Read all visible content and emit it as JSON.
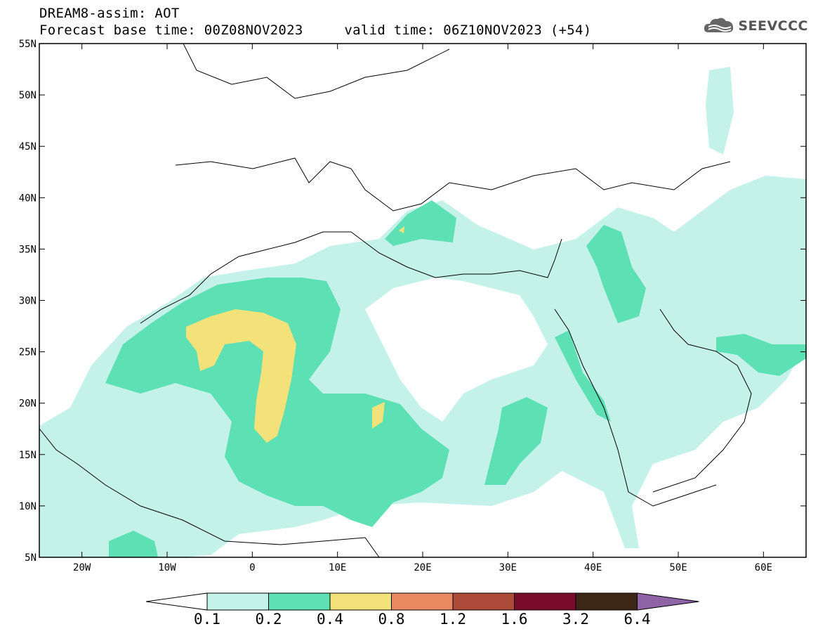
{
  "header": {
    "title": "DREAM8-assim: AOT",
    "base_time_label": "Forecast base time: 00Z08NOV2023",
    "valid_time_label": "valid time: 06Z10NOV2023 (+54)"
  },
  "logo": {
    "text": "SEEVCCC",
    "icon": "cloud-icon"
  },
  "map": {
    "lat_ticks": [
      "55N",
      "50N",
      "45N",
      "40N",
      "35N",
      "30N",
      "25N",
      "20N",
      "15N",
      "10N",
      "5N"
    ],
    "lon_ticks": [
      "20W",
      "10W",
      "0",
      "10E",
      "20E",
      "30E",
      "40E",
      "50E",
      "60E"
    ],
    "lon_range": [
      -25,
      65
    ],
    "lat_range": [
      5,
      55
    ]
  },
  "legend": {
    "labels": [
      "0.1",
      "0.2",
      "0.4",
      "0.8",
      "1.2",
      "1.6",
      "3.2",
      "6.4"
    ],
    "colors": [
      "#c4f2e8",
      "#5ee0b5",
      "#f3e27a",
      "#e98a63",
      "#ad4b3b",
      "#7a0b2a",
      "#3c2616",
      "#8e63a8"
    ]
  }
}
